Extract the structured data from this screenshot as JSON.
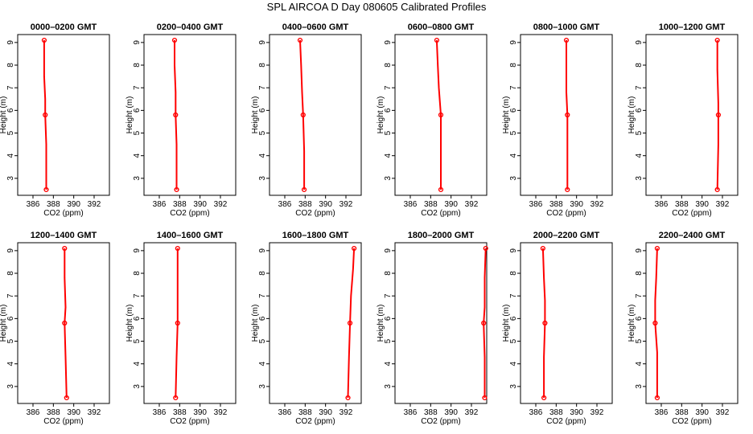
{
  "title": "SPL AIRCOA D  Day 080605  Calibrated Profiles",
  "colors": {
    "profile": "#ff0000",
    "axis": "#000000"
  },
  "chart_data": {
    "type": "line",
    "layout": "2x6 grid of profile panels",
    "xlabel": "CO2 (ppm)",
    "ylabel": "Height (m)",
    "xlim": [
      384.5,
      393.5
    ],
    "ylim": [
      2.25,
      9.35
    ],
    "xticks": [
      386,
      388,
      390,
      392
    ],
    "yticks": [
      3,
      4,
      5,
      6,
      7,
      8,
      9
    ],
    "panels": [
      {
        "title": "0000–0200 GMT",
        "points": [
          [
            387.1,
            9.1
          ],
          [
            387.2,
            5.8
          ],
          [
            387.3,
            2.5
          ]
        ],
        "line": [
          [
            387.1,
            9.1
          ],
          [
            387.1,
            7.5
          ],
          [
            387.2,
            6.5
          ],
          [
            387.2,
            5.8
          ],
          [
            387.3,
            4.5
          ],
          [
            387.3,
            2.5
          ]
        ]
      },
      {
        "title": "0200–0400 GMT",
        "points": [
          [
            387.5,
            9.1
          ],
          [
            387.6,
            5.8
          ],
          [
            387.7,
            2.5
          ]
        ],
        "line": [
          [
            387.5,
            9.1
          ],
          [
            387.5,
            8.0
          ],
          [
            387.6,
            6.8
          ],
          [
            387.6,
            5.8
          ],
          [
            387.7,
            4.5
          ],
          [
            387.7,
            2.5
          ]
        ]
      },
      {
        "title": "0400–0600 GMT",
        "points": [
          [
            387.5,
            9.1
          ],
          [
            387.8,
            5.8
          ],
          [
            387.9,
            2.5
          ]
        ],
        "line": [
          [
            387.5,
            9.1
          ],
          [
            387.6,
            8.0
          ],
          [
            387.7,
            6.8
          ],
          [
            387.8,
            5.8
          ],
          [
            387.9,
            4.2
          ],
          [
            387.9,
            2.5
          ]
        ]
      },
      {
        "title": "0600–0800 GMT",
        "points": [
          [
            388.6,
            9.1
          ],
          [
            389.0,
            5.8
          ],
          [
            389.0,
            2.5
          ]
        ],
        "line": [
          [
            388.6,
            9.1
          ],
          [
            388.7,
            8.0
          ],
          [
            388.8,
            7.0
          ],
          [
            389.0,
            5.8
          ],
          [
            389.0,
            4.0
          ],
          [
            389.0,
            2.5
          ]
        ]
      },
      {
        "title": "0800–1000 GMT",
        "points": [
          [
            389.0,
            9.1
          ],
          [
            389.1,
            5.8
          ],
          [
            389.1,
            2.5
          ]
        ],
        "line": [
          [
            389.0,
            9.1
          ],
          [
            389.0,
            8.0
          ],
          [
            389.0,
            6.8
          ],
          [
            389.1,
            5.8
          ],
          [
            389.1,
            4.5
          ],
          [
            389.1,
            2.5
          ]
        ]
      },
      {
        "title": "1000–1200 GMT",
        "points": [
          [
            391.5,
            9.1
          ],
          [
            391.6,
            5.8
          ],
          [
            391.5,
            2.5
          ]
        ],
        "line": [
          [
            391.5,
            9.1
          ],
          [
            391.5,
            7.8
          ],
          [
            391.6,
            6.3
          ],
          [
            391.6,
            5.8
          ],
          [
            391.6,
            4.5
          ],
          [
            391.5,
            2.5
          ]
        ]
      },
      {
        "title": "1200–1400 GMT",
        "points": [
          [
            389.1,
            9.1
          ],
          [
            389.1,
            5.8
          ],
          [
            389.3,
            2.5
          ]
        ],
        "line": [
          [
            389.1,
            9.1
          ],
          [
            389.1,
            7.8
          ],
          [
            389.2,
            6.5
          ],
          [
            389.1,
            5.8
          ],
          [
            389.2,
            4.3
          ],
          [
            389.3,
            2.5
          ]
        ]
      },
      {
        "title": "1400–1600 GMT",
        "points": [
          [
            387.8,
            9.1
          ],
          [
            387.8,
            5.8
          ],
          [
            387.6,
            2.5
          ]
        ],
        "line": [
          [
            387.8,
            9.1
          ],
          [
            387.8,
            7.5
          ],
          [
            387.8,
            6.5
          ],
          [
            387.8,
            5.8
          ],
          [
            387.7,
            4.3
          ],
          [
            387.6,
            2.5
          ]
        ]
      },
      {
        "title": "1600–1800 GMT",
        "points": [
          [
            392.8,
            9.1
          ],
          [
            392.4,
            5.8
          ],
          [
            392.2,
            2.5
          ]
        ],
        "line": [
          [
            392.8,
            9.1
          ],
          [
            392.7,
            8.2
          ],
          [
            392.5,
            7.0
          ],
          [
            392.4,
            5.8
          ],
          [
            392.3,
            4.3
          ],
          [
            392.2,
            2.5
          ]
        ]
      },
      {
        "title": "1800–2000 GMT",
        "points": [
          [
            393.4,
            9.1
          ],
          [
            393.2,
            5.8
          ],
          [
            393.3,
            2.5
          ]
        ],
        "line": [
          [
            393.4,
            9.1
          ],
          [
            393.3,
            7.8
          ],
          [
            393.3,
            6.5
          ],
          [
            393.2,
            5.8
          ],
          [
            393.3,
            4.3
          ],
          [
            393.3,
            2.5
          ]
        ]
      },
      {
        "title": "2000–2200 GMT",
        "points": [
          [
            386.7,
            9.1
          ],
          [
            386.9,
            5.8
          ],
          [
            386.8,
            2.5
          ]
        ],
        "line": [
          [
            386.7,
            9.1
          ],
          [
            386.8,
            7.8
          ],
          [
            386.9,
            6.8
          ],
          [
            386.9,
            5.8
          ],
          [
            386.8,
            4.3
          ],
          [
            386.8,
            2.5
          ]
        ]
      },
      {
        "title": "2200–2400 GMT",
        "points": [
          [
            385.6,
            9.1
          ],
          [
            385.4,
            5.8
          ],
          [
            385.6,
            2.5
          ]
        ],
        "line": [
          [
            385.6,
            9.1
          ],
          [
            385.5,
            7.8
          ],
          [
            385.4,
            6.8
          ],
          [
            385.4,
            5.8
          ],
          [
            385.6,
            4.5
          ],
          [
            385.6,
            2.5
          ]
        ]
      }
    ]
  }
}
